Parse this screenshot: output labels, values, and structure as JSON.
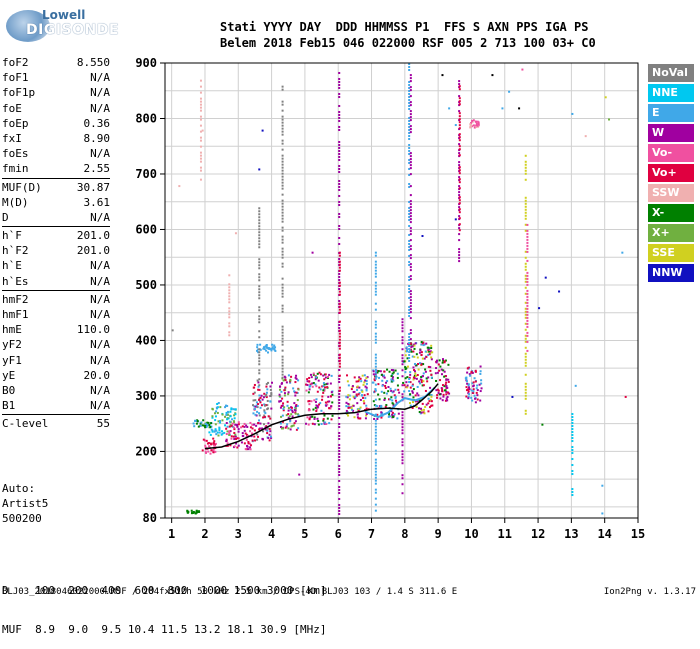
{
  "logo": {
    "top": "Lowell",
    "main": "DIGISONDE"
  },
  "header": {
    "row1": "Stati YYYY DAY  DDD HHMMSS P1  FFS S AXN PPS IGA PS",
    "row2": "Belem 2018 Feb15 046 022000 RSF 005 2 713 100 03+ C0"
  },
  "params": [
    {
      "name": "foF2",
      "value": "8.550"
    },
    {
      "name": "foF1",
      "value": "N/A"
    },
    {
      "name": "foF1p",
      "value": "N/A"
    },
    {
      "name": "foE",
      "value": "N/A"
    },
    {
      "name": "foEp",
      "value": "0.36"
    },
    {
      "name": "fxI",
      "value": "8.90"
    },
    {
      "name": "foEs",
      "value": "N/A"
    },
    {
      "name": "fmin",
      "value": "2.55"
    },
    {
      "name": "MUF(D)",
      "value": "30.87"
    },
    {
      "name": "M(D)",
      "value": "3.61"
    },
    {
      "name": "D",
      "value": "N/A"
    },
    {
      "name": "h`F",
      "value": "201.0"
    },
    {
      "name": "h`F2",
      "value": "201.0"
    },
    {
      "name": "h`E",
      "value": "N/A"
    },
    {
      "name": "h`Es",
      "value": "N/A"
    },
    {
      "name": "hmF2",
      "value": "N/A"
    },
    {
      "name": "hmF1",
      "value": "N/A"
    },
    {
      "name": "hmE",
      "value": "110.0"
    },
    {
      "name": "yF2",
      "value": "N/A"
    },
    {
      "name": "yF1",
      "value": "N/A"
    },
    {
      "name": "yE",
      "value": "20.0"
    },
    {
      "name": "B0",
      "value": "N/A"
    },
    {
      "name": "B1",
      "value": "N/A"
    },
    {
      "name": "C-level",
      "value": "55"
    }
  ],
  "auto": {
    "line1": "Auto:",
    "line2": "Artist5",
    "line3": "500200"
  },
  "legend": [
    {
      "label": "NoVal",
      "color": "#808080"
    },
    {
      "label": "NNE",
      "color": "#00c8f0"
    },
    {
      "label": "E",
      "color": "#40a8e8"
    },
    {
      "label": "W",
      "color": "#a000a0"
    },
    {
      "label": "Vo-",
      "color": "#f050a0"
    },
    {
      "label": "Vo+",
      "color": "#e00040"
    },
    {
      "label": "SSW",
      "color": "#f0b0b0"
    },
    {
      "label": "X-",
      "color": "#008000"
    },
    {
      "label": "X+",
      "color": "#70b040"
    },
    {
      "label": "SSE",
      "color": "#d0d020"
    },
    {
      "label": "NNW",
      "color": "#1010c0"
    }
  ],
  "dmuf": {
    "d_row": "D    100  200  400  600  800  1000 1500 3000 [km]",
    "muf_row": "MUF  8.9  9.0  9.5 10.4 11.5 13.2 18.1 30.9 [MHz]"
  },
  "footer": {
    "text": "BLJ03_2018046022000.RSF / 284fx512h 50 kHz 2.5 km / DPS-4D BLJ03 103 / 1.4 S 311.6 E",
    "version": "Ion2Png v. 1.3.17"
  },
  "chart_data": {
    "type": "scatter",
    "xlim": [
      0.8,
      15
    ],
    "ylim": [
      80,
      900
    ],
    "x_ticks": [
      1,
      2,
      3,
      4,
      5,
      6,
      7,
      8,
      9,
      10,
      11,
      12,
      13,
      14,
      15
    ],
    "y_ticks": [
      80,
      200,
      300,
      400,
      500,
      600,
      700,
      800,
      900
    ],
    "grid": true,
    "trace": {
      "color": "#000000",
      "points": [
        [
          2.0,
          205
        ],
        [
          2.5,
          208
        ],
        [
          3.0,
          218
        ],
        [
          3.5,
          232
        ],
        [
          4.0,
          248
        ],
        [
          4.5,
          258
        ],
        [
          5.0,
          265
        ],
        [
          5.5,
          268
        ],
        [
          6.0,
          268
        ],
        [
          6.5,
          270
        ],
        [
          7.0,
          276
        ],
        [
          7.5,
          278
        ],
        [
          8.0,
          276
        ],
        [
          8.3,
          282
        ],
        [
          8.5,
          292
        ],
        [
          8.8,
          308
        ],
        [
          9.0,
          322
        ]
      ]
    },
    "trace2": {
      "color": "#40a8e8",
      "points": [
        [
          6.8,
          272
        ],
        [
          7.2,
          262
        ],
        [
          7.5,
          270
        ],
        [
          7.8,
          288
        ],
        [
          8.0,
          296
        ],
        [
          8.3,
          292
        ],
        [
          8.6,
          298
        ],
        [
          8.9,
          315
        ]
      ]
    },
    "clusters": [
      {
        "x0": 1.9,
        "x1": 2.3,
        "y0": 195,
        "y1": 225,
        "colors": [
          "#e00040",
          "#f050a0"
        ]
      },
      {
        "x0": 2.1,
        "x1": 2.9,
        "y0": 230,
        "y1": 290,
        "colors": [
          "#40a8e8",
          "#70b040",
          "#00c8f0"
        ]
      },
      {
        "x0": 2.6,
        "x1": 3.4,
        "y0": 205,
        "y1": 255,
        "colors": [
          "#e00040",
          "#a000a0",
          "#f050a0"
        ]
      },
      {
        "x0": 3.4,
        "x1": 4.0,
        "y0": 220,
        "y1": 330,
        "colors": [
          "#e00040",
          "#40a8e8",
          "#a000a0",
          "#808080"
        ]
      },
      {
        "x0": 3.5,
        "x1": 4.1,
        "y0": 380,
        "y1": 395,
        "colors": [
          "#40a8e8"
        ]
      },
      {
        "x0": 4.2,
        "x1": 4.8,
        "y0": 240,
        "y1": 340,
        "colors": [
          "#a000a0",
          "#40a8e8",
          "#e00040",
          "#70b040"
        ]
      },
      {
        "x0": 5.0,
        "x1": 5.8,
        "y0": 250,
        "y1": 345,
        "colors": [
          "#a000a0",
          "#e00040",
          "#40a8e8",
          "#008000",
          "#f050a0"
        ]
      },
      {
        "x0": 6.2,
        "x1": 6.9,
        "y0": 260,
        "y1": 340,
        "colors": [
          "#a000a0",
          "#40a8e8",
          "#e00040",
          "#d0d020"
        ]
      },
      {
        "x0": 7.0,
        "x1": 7.8,
        "y0": 260,
        "y1": 350,
        "colors": [
          "#a000a0",
          "#e00040",
          "#008000",
          "#40a8e8"
        ]
      },
      {
        "x0": 7.9,
        "x1": 8.8,
        "y0": 270,
        "y1": 400,
        "colors": [
          "#a000a0",
          "#008000",
          "#e00040",
          "#d0d020",
          "#40a8e8"
        ]
      },
      {
        "x0": 8.9,
        "x1": 9.3,
        "y0": 290,
        "y1": 370,
        "colors": [
          "#a000a0",
          "#008000",
          "#e00040"
        ]
      },
      {
        "x0": 9.8,
        "x1": 10.3,
        "y0": 290,
        "y1": 355,
        "colors": [
          "#a000a0",
          "#e00040",
          "#40a8e8"
        ]
      },
      {
        "x0": 9.9,
        "x1": 10.2,
        "y0": 785,
        "y1": 800,
        "colors": [
          "#f0b0b0",
          "#f050a0"
        ]
      },
      {
        "x0": 1.4,
        "x1": 1.8,
        "y0": 90,
        "y1": 95,
        "colors": [
          "#008000"
        ]
      },
      {
        "x0": 1.6,
        "x1": 2.2,
        "y0": 245,
        "y1": 258,
        "colors": [
          "#40a8e8",
          "#008000"
        ]
      }
    ],
    "columns": [
      {
        "x": 6.0,
        "y0": 80,
        "y1": 900,
        "color": "#a000a0"
      },
      {
        "x": 6.02,
        "y0": 310,
        "y1": 560,
        "color": "#e00040"
      },
      {
        "x": 7.1,
        "y0": 90,
        "y1": 560,
        "color": "#40a8e8"
      },
      {
        "x": 8.1,
        "y0": 310,
        "y1": 900,
        "color": "#40a8e8"
      },
      {
        "x": 8.15,
        "y0": 400,
        "y1": 880,
        "color": "#a000a0"
      },
      {
        "x": 9.6,
        "y0": 540,
        "y1": 880,
        "color": "#a000a0"
      },
      {
        "x": 9.62,
        "y0": 600,
        "y1": 860,
        "color": "#e00040"
      },
      {
        "x": 11.6,
        "y0": 260,
        "y1": 740,
        "color": "#d0d020"
      },
      {
        "x": 11.65,
        "y0": 380,
        "y1": 610,
        "color": "#f050a0"
      },
      {
        "x": 3.6,
        "y0": 320,
        "y1": 640,
        "color": "#808080"
      },
      {
        "x": 4.3,
        "y0": 330,
        "y1": 870,
        "color": "#808080"
      },
      {
        "x": 2.7,
        "y0": 410,
        "y1": 530,
        "color": "#f0b0b0"
      },
      {
        "x": 1.85,
        "y0": 680,
        "y1": 870,
        "color": "#f0b0b0"
      },
      {
        "x": 13.0,
        "y0": 120,
        "y1": 280,
        "color": "#00c8f0"
      },
      {
        "x": 7.9,
        "y0": 120,
        "y1": 440,
        "color": "#a000a0"
      }
    ],
    "scatter_pts": [
      [
        11.2,
        300,
        "#1010c0"
      ],
      [
        12.1,
        250,
        "#008000"
      ],
      [
        13.1,
        320,
        "#40a8e8"
      ],
      [
        13.9,
        140,
        "#40a8e8"
      ],
      [
        14.1,
        800,
        "#70b040"
      ],
      [
        14.0,
        840,
        "#d0d020"
      ],
      [
        12.2,
        515,
        "#1010c0"
      ],
      [
        12.6,
        490,
        "#1010c0"
      ],
      [
        9.1,
        880,
        "#000000"
      ],
      [
        10.6,
        880,
        "#000000"
      ],
      [
        11.4,
        820,
        "#000000"
      ],
      [
        13.0,
        810,
        "#40a8e8"
      ],
      [
        14.5,
        560,
        "#40a8e8"
      ],
      [
        14.6,
        300,
        "#e00040"
      ],
      [
        13.9,
        90,
        "#40a8e8"
      ],
      [
        11.1,
        850,
        "#40a8e8"
      ],
      [
        9.3,
        820,
        "#40a8e8"
      ],
      [
        9.5,
        790,
        "#40a8e8"
      ],
      [
        10.9,
        820,
        "#40a8e8"
      ],
      [
        13.4,
        770,
        "#f0b0b0"
      ],
      [
        2.9,
        595,
        "#f0b0b0"
      ],
      [
        1.2,
        680,
        "#f0b0b0"
      ],
      [
        1.9,
        780,
        "#f0b0b0"
      ],
      [
        12.0,
        460,
        "#1010c0"
      ],
      [
        4.8,
        160,
        "#a000a0"
      ],
      [
        5.2,
        560,
        "#a000a0"
      ],
      [
        3.6,
        710,
        "#1010c0"
      ],
      [
        3.7,
        780,
        "#1010c0"
      ],
      [
        9.5,
        620,
        "#1010c0"
      ],
      [
        8.5,
        590,
        "#1010c0"
      ],
      [
        1.0,
        420,
        "#808080"
      ],
      [
        11.5,
        890,
        "#f050a0"
      ]
    ]
  }
}
